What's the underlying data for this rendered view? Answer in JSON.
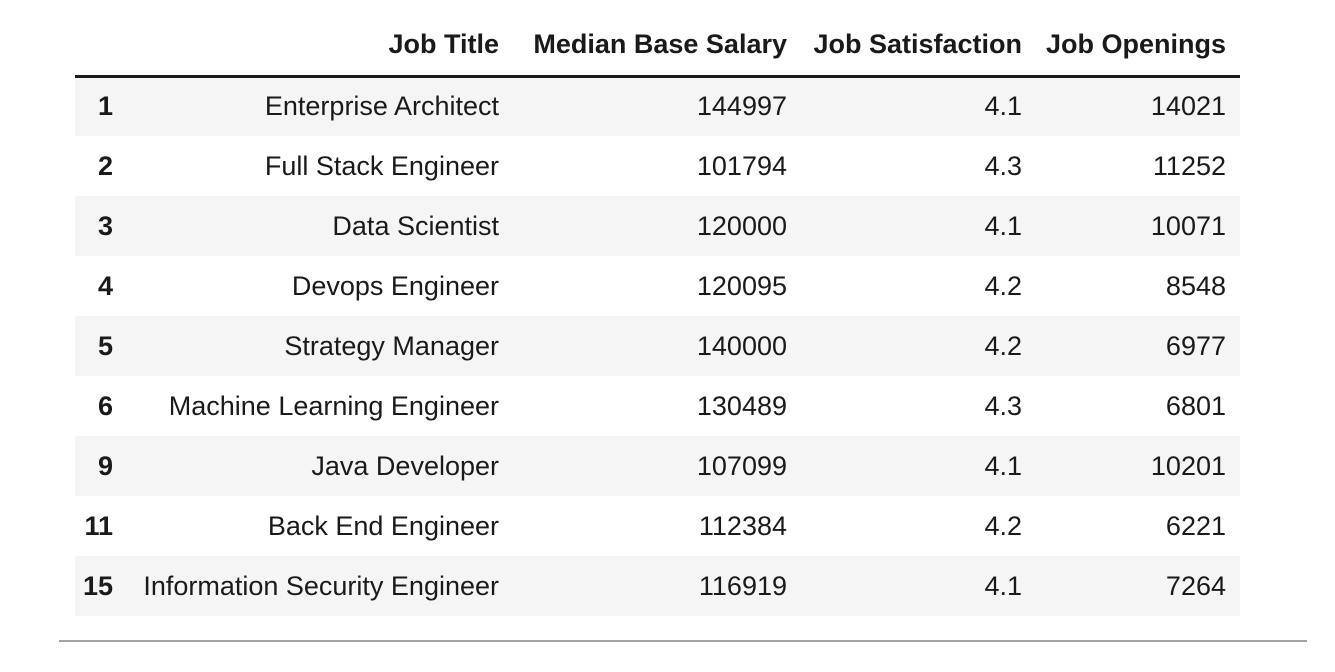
{
  "chart_data": {
    "type": "table",
    "title": "",
    "index_header": "",
    "columns": [
      "Job Title",
      "Median Base Salary",
      "Job Satisfaction",
      "Job Openings"
    ],
    "rows": [
      [
        "1",
        "Enterprise Architect",
        "144997",
        "4.1",
        "14021"
      ],
      [
        "2",
        "Full Stack Engineer",
        "101794",
        "4.3",
        "11252"
      ],
      [
        "3",
        "Data Scientist",
        "120000",
        "4.1",
        "10071"
      ],
      [
        "4",
        "Devops Engineer",
        "120095",
        "4.2",
        "8548"
      ],
      [
        "5",
        "Strategy Manager",
        "140000",
        "4.2",
        "6977"
      ],
      [
        "6",
        "Machine Learning Engineer",
        "130489",
        "4.3",
        "6801"
      ],
      [
        "9",
        "Java Developer",
        "107099",
        "4.1",
        "10201"
      ],
      [
        "11",
        "Back End Engineer",
        "112384",
        "4.2",
        "6221"
      ],
      [
        "15",
        "Information Security Engineer",
        "116919",
        "4.1",
        "7264"
      ]
    ],
    "layout": {
      "striped_rows": "odd",
      "header_rule": true,
      "bottom_rule": true,
      "alignment": "right"
    }
  },
  "colors": {
    "background": "#ffffff",
    "text": "#1a1a1a",
    "row_stripe": "#f5f5f5",
    "header_rule": "#1a1a1a",
    "bottom_rule": "#a3a3a3"
  }
}
